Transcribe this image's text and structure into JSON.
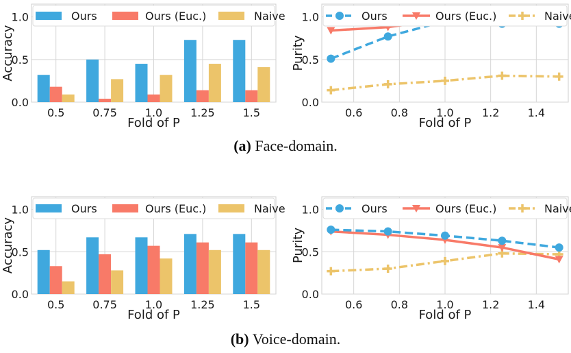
{
  "colors": {
    "ours": "#3fa8de",
    "euc": "#f87a68",
    "naive": "#ecc46a"
  },
  "captions": [
    {
      "label": "(a)",
      "text": "Face-domain."
    },
    {
      "label": "(b)",
      "text": "Voice-domain."
    }
  ],
  "chart_data": [
    {
      "type": "bar",
      "categories": [
        "0.5",
        "0.75",
        "1.0",
        "1.25",
        "1.5"
      ],
      "xlabel": "Fold of P",
      "ylabel": "Accuracy",
      "ylim": [
        0,
        1.15
      ],
      "yticks": [
        "0.0",
        "0.5",
        "1.0"
      ],
      "legend": "top",
      "grid": true,
      "series": [
        {
          "name": "Ours",
          "values": [
            0.32,
            0.5,
            0.45,
            0.73,
            0.73
          ]
        },
        {
          "name": "Ours (Euc.)",
          "values": [
            0.18,
            0.04,
            0.09,
            0.14,
            0.14
          ]
        },
        {
          "name": "Naive",
          "values": [
            0.09,
            0.27,
            0.32,
            0.45,
            0.41
          ]
        }
      ]
    },
    {
      "type": "line",
      "x": [
        0.5,
        0.75,
        1.0,
        1.25,
        1.5
      ],
      "xlabel": "Fold of P",
      "ylabel": "Purity",
      "xlim": [
        0.46,
        1.54
      ],
      "ylim": [
        0,
        1.15
      ],
      "xticks": [
        "0.6",
        "0.8",
        "1.0",
        "1.2",
        "1.4"
      ],
      "yticks": [
        "0.0",
        "0.5",
        "1.0"
      ],
      "legend": "top",
      "grid": true,
      "series": [
        {
          "name": "Ours",
          "values": [
            0.51,
            0.77,
            0.95,
            0.92,
            0.92
          ]
        },
        {
          "name": "Ours (Euc.)",
          "values": [
            0.84,
            0.88,
            0.97,
            0.97,
            0.97
          ]
        },
        {
          "name": "Naive",
          "values": [
            0.14,
            0.21,
            0.25,
            0.31,
            0.3
          ]
        }
      ]
    },
    {
      "type": "bar",
      "categories": [
        "0.5",
        "0.75",
        "1.0",
        "1.25",
        "1.5"
      ],
      "xlabel": "Fold of P",
      "ylabel": "Accuracy",
      "ylim": [
        0,
        1.15
      ],
      "yticks": [
        "0.0",
        "0.5",
        "1.0"
      ],
      "legend": "top",
      "grid": true,
      "series": [
        {
          "name": "Ours",
          "values": [
            0.52,
            0.67,
            0.67,
            0.71,
            0.71
          ]
        },
        {
          "name": "Ours (Euc.)",
          "values": [
            0.33,
            0.47,
            0.57,
            0.61,
            0.61
          ]
        },
        {
          "name": "Naive",
          "values": [
            0.15,
            0.28,
            0.42,
            0.52,
            0.52
          ]
        }
      ]
    },
    {
      "type": "line",
      "x": [
        0.5,
        0.75,
        1.0,
        1.25,
        1.5
      ],
      "xlabel": "Fold of P",
      "ylabel": "Purity",
      "xlim": [
        0.46,
        1.54
      ],
      "ylim": [
        0,
        1.15
      ],
      "xticks": [
        "0.6",
        "0.8",
        "1.0",
        "1.2",
        "1.4"
      ],
      "yticks": [
        "0.0",
        "0.5",
        "1.0"
      ],
      "legend": "top",
      "grid": true,
      "series": [
        {
          "name": "Ours",
          "values": [
            0.76,
            0.74,
            0.69,
            0.63,
            0.55
          ]
        },
        {
          "name": "Ours (Euc.)",
          "values": [
            0.74,
            0.7,
            0.64,
            0.55,
            0.41
          ]
        },
        {
          "name": "Naive",
          "values": [
            0.27,
            0.3,
            0.39,
            0.48,
            0.47
          ]
        }
      ]
    }
  ]
}
